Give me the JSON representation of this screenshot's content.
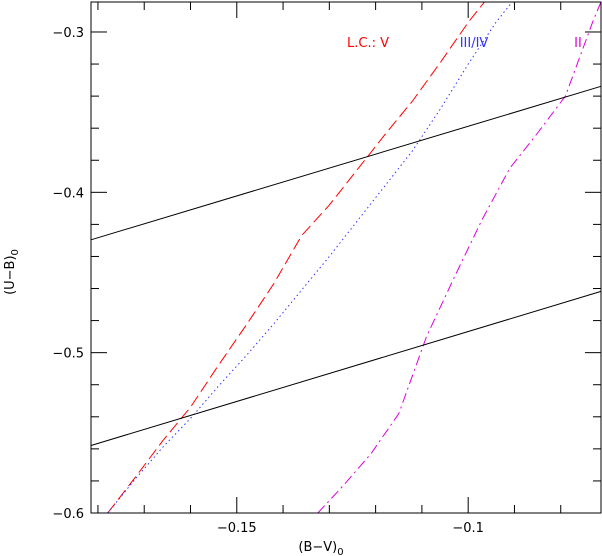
{
  "chart_data": {
    "type": "line",
    "xlabel": "(B−V)",
    "xlabel_sub": "0",
    "ylabel": "(U−B)",
    "ylabel_sub": "0",
    "xlim": [
      -0.1815,
      -0.0713
    ],
    "ylim": [
      -0.6,
      -0.2813
    ],
    "y_inverted": true,
    "x_ticks": [
      -0.15,
      -0.1
    ],
    "x_tick_labels": [
      "−0.15",
      "−0.1"
    ],
    "y_ticks": [
      -0.3,
      -0.4,
      -0.5,
      -0.6
    ],
    "y_tick_labels": [
      "−0.3",
      "−0.4",
      "−0.5",
      "−0.6"
    ],
    "x_minor_step": 0.01,
    "y_minor_step": 0.02,
    "grid": false,
    "legend_placement": "top-right",
    "series": [
      {
        "name": "L.C.: V",
        "color": "#ff0000",
        "style": "dashed",
        "x": [
          -0.1779,
          -0.172,
          -0.166,
          -0.16,
          -0.154,
          -0.148,
          -0.142,
          -0.136,
          -0.13,
          -0.124,
          -0.118,
          -0.112,
          -0.106,
          -0.1,
          -0.0965
        ],
        "y": [
          -0.6,
          -0.578,
          -0.555,
          -0.534,
          -0.508,
          -0.483,
          -0.457,
          -0.427,
          -0.408,
          -0.386,
          -0.364,
          -0.343,
          -0.319,
          -0.294,
          -0.2813
        ]
      },
      {
        "name": "III/IV",
        "color": "#3333ff",
        "style": "dotted",
        "x": [
          -0.1779,
          -0.172,
          -0.166,
          -0.16,
          -0.154,
          -0.148,
          -0.142,
          -0.136,
          -0.13,
          -0.124,
          -0.118,
          -0.112,
          -0.106,
          -0.1,
          -0.094,
          -0.0905
        ],
        "y": [
          -0.6,
          -0.579,
          -0.559,
          -0.541,
          -0.521,
          -0.502,
          -0.482,
          -0.461,
          -0.44,
          -0.418,
          -0.396,
          -0.374,
          -0.348,
          -0.32,
          -0.294,
          -0.2813
        ]
      },
      {
        "name": "II",
        "color": "#dd00dd",
        "style": "dashdot",
        "x": [
          -0.1325,
          -0.127,
          -0.121,
          -0.115,
          -0.109,
          -0.103,
          -0.097,
          -0.091,
          -0.085,
          -0.079,
          -0.073,
          -0.0713
        ],
        "y": [
          -0.6,
          -0.583,
          -0.563,
          -0.538,
          -0.49,
          -0.453,
          -0.417,
          -0.385,
          -0.363,
          -0.34,
          -0.293,
          -0.2813
        ]
      },
      {
        "name": "",
        "color": "#000000",
        "style": "solid",
        "x": [
          -0.1815,
          -0.0713
        ],
        "y": [
          -0.4296,
          -0.3339
        ]
      },
      {
        "name": "",
        "color": "#000000",
        "style": "solid",
        "x": [
          -0.1815,
          -0.0713
        ],
        "y": [
          -0.5579,
          -0.4618
        ]
      }
    ]
  }
}
